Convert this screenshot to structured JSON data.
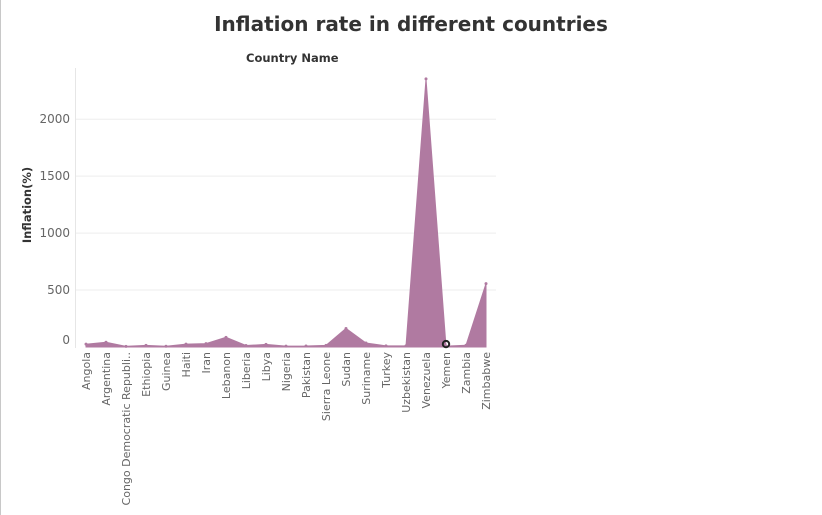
{
  "chart_data": {
    "type": "area",
    "title": "Inflation rate in different countries",
    "column_header": "Country Name",
    "xlabel": "",
    "ylabel": "Inflation(%)",
    "ylim": [
      0,
      2450
    ],
    "yticks": [
      0,
      500,
      1000,
      1500,
      2000
    ],
    "grid": true,
    "color": "#b07aa1",
    "categories": [
      "Angola",
      "Argentina",
      "Congo Democratic Republi..",
      "Ethiopia",
      "Guinea",
      "Haiti",
      "Iran",
      "Lebanon",
      "Liberia",
      "Libya",
      "Nigeria",
      "Pakistan",
      "Sierra Leone",
      "Sudan",
      "Suriname",
      "Turkey",
      "Uzbekistan",
      "Venezuela",
      "Yemen",
      "Zambia",
      "Zimbabwe"
    ],
    "values": [
      25,
      42,
      6,
      14,
      7,
      25,
      30,
      85,
      13,
      23,
      8,
      9,
      14,
      163,
      35,
      10,
      10,
      2355,
      8,
      15,
      557
    ]
  }
}
